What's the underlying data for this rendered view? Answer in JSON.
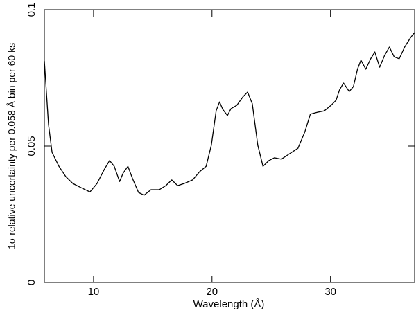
{
  "chart_data": {
    "type": "line",
    "x_label": "Wavelength (Å)",
    "y_label": "1σ relative uncertainty per 0.058 Å bin per 60 ks",
    "xlim": [
      5.85,
      37.1
    ],
    "ylim": [
      0,
      0.1
    ],
    "xticks": [
      10,
      20,
      30
    ],
    "yticks": [
      0,
      0.05,
      0.1
    ],
    "color": "#000000",
    "x": [
      5.85,
      6.2,
      6.5,
      7.08,
      7.66,
      8.25,
      8.83,
      9.4,
      9.7,
      10.3,
      10.9,
      11.35,
      11.75,
      12.2,
      12.5,
      12.9,
      13.3,
      13.8,
      14.27,
      14.85,
      15.55,
      16.1,
      16.6,
      17.1,
      17.66,
      18.36,
      18.95,
      19.5,
      19.94,
      20.35,
      20.64,
      20.9,
      21.3,
      21.6,
      22.1,
      22.6,
      23.0,
      23.4,
      23.86,
      24.3,
      24.8,
      25.26,
      25.85,
      26.55,
      27.25,
      27.84,
      28.3,
      28.9,
      29.47,
      30.06,
      30.47,
      30.76,
      31.1,
      31.58,
      31.93,
      32.28,
      32.57,
      32.98,
      33.39,
      33.74,
      34.15,
      34.56,
      34.97,
      35.38,
      35.8,
      36.26,
      36.73,
      37.08
    ],
    "values": [
      0.0812,
      0.0579,
      0.0477,
      0.0426,
      0.0388,
      0.0363,
      0.035,
      0.0338,
      0.0332,
      0.0363,
      0.0414,
      0.0447,
      0.0426,
      0.037,
      0.0401,
      0.0426,
      0.038,
      0.033,
      0.032,
      0.034,
      0.034,
      0.0355,
      0.0376,
      0.0355,
      0.0363,
      0.0376,
      0.0406,
      0.0426,
      0.0503,
      0.063,
      0.0662,
      0.0635,
      0.0612,
      0.0637,
      0.065,
      0.068,
      0.0698,
      0.0655,
      0.0503,
      0.0426,
      0.0447,
      0.0457,
      0.0452,
      0.0472,
      0.0492,
      0.0553,
      0.0617,
      0.0624,
      0.0629,
      0.065,
      0.0668,
      0.0706,
      0.0731,
      0.07,
      0.0718,
      0.0782,
      0.0815,
      0.0782,
      0.082,
      0.0845,
      0.0789,
      0.0832,
      0.0863,
      0.0827,
      0.082,
      0.0863,
      0.0896,
      0.0916
    ]
  }
}
